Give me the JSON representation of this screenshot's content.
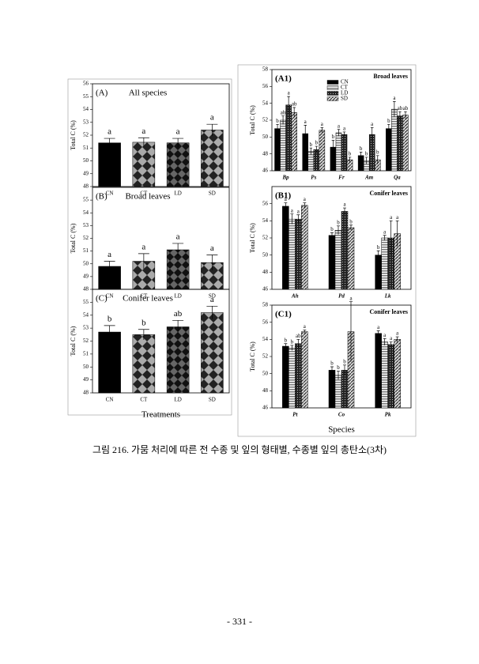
{
  "chart_data": [
    {
      "type": "bar",
      "panel": "(A)",
      "title": "All species",
      "ylabel": "Total C (%)",
      "categories": [
        "CN",
        "CT",
        "LD",
        "SD"
      ],
      "values": [
        51.4,
        51.45,
        51.4,
        52.4
      ],
      "errors": [
        0.35,
        0.35,
        0.35,
        0.45
      ],
      "letters": [
        "a",
        "a",
        "a",
        "a"
      ],
      "patterns": [
        "solid",
        "diamond",
        "diamond-dark",
        "diamond"
      ],
      "ylim": [
        48,
        56
      ],
      "yticks": [
        48,
        49,
        50,
        51,
        52,
        53,
        54,
        55,
        56
      ]
    },
    {
      "type": "bar",
      "panel": "(B)",
      "title": "Broad leaves",
      "ylabel": "Total C (%)",
      "categories": [
        "CN",
        "CT",
        "LD",
        "SD"
      ],
      "values": [
        49.8,
        50.2,
        51.1,
        50.1
      ],
      "errors": [
        0.4,
        0.6,
        0.5,
        0.6
      ],
      "letters": [
        "a",
        "a",
        "a",
        "a"
      ],
      "patterns": [
        "solid",
        "diamond",
        "diamond-dark",
        "diamond"
      ],
      "ylim": [
        48,
        56
      ],
      "yticks": [
        48,
        49,
        50,
        51,
        52,
        53,
        54,
        55
      ]
    },
    {
      "type": "bar",
      "panel": "(C)",
      "title": "Conifer leaves",
      "ylabel": "Total C (%)",
      "xlabel": "Treatments",
      "categories": [
        "CN",
        "CT",
        "LD",
        "SD"
      ],
      "values": [
        52.7,
        52.5,
        53.1,
        54.2
      ],
      "errors": [
        0.5,
        0.4,
        0.5,
        0.5
      ],
      "letters": [
        "b",
        "b",
        "ab",
        "a"
      ],
      "patterns": [
        "solid",
        "diamond",
        "diamond-dark",
        "diamond"
      ],
      "ylim": [
        48,
        56
      ],
      "yticks": [
        48,
        49,
        50,
        51,
        52,
        53,
        54,
        55
      ]
    },
    {
      "type": "grouped_bar",
      "panel": "(A1)",
      "title": "Broad leaves",
      "ylabel": "Total C (%)",
      "legend": true,
      "categories": [
        "Bp",
        "Ps",
        "Fr",
        "Am",
        "Qa"
      ],
      "series": [
        {
          "name": "CN",
          "pattern": "solid",
          "values": [
            51.0,
            50.4,
            48.8,
            47.8,
            51.0
          ],
          "errors": [
            0.5,
            1.0,
            0.8,
            0.4,
            0.5
          ],
          "letters": [
            "b",
            "a",
            "b",
            "b",
            "b"
          ]
        },
        {
          "name": "CT",
          "pattern": "hstripe",
          "values": [
            52.0,
            48.3,
            50.5,
            47.2,
            53.3
          ],
          "errors": [
            0.5,
            0.4,
            0.4,
            0.4,
            0.9
          ],
          "letters": [
            "ab",
            "b",
            "a",
            "b",
            "a"
          ]
        },
        {
          "name": "LD",
          "pattern": "dots",
          "values": [
            53.8,
            48.5,
            50.3,
            50.3,
            52.5
          ],
          "errors": [
            1.0,
            0.4,
            0.3,
            0.8,
            0.5
          ],
          "letters": [
            "a",
            "b",
            "a",
            "a",
            "ab"
          ]
        },
        {
          "name": "SD",
          "pattern": "diag",
          "values": [
            52.9,
            50.8,
            47.3,
            47.3,
            52.6
          ],
          "errors": [
            0.6,
            0.3,
            0.3,
            0.5,
            0.4
          ],
          "letters": [
            "ab",
            "a",
            "b",
            "b",
            "ab"
          ]
        }
      ],
      "ylim": [
        46,
        58
      ],
      "yticks": [
        46,
        48,
        50,
        52,
        54,
        56,
        58
      ]
    },
    {
      "type": "grouped_bar",
      "panel": "(B1)",
      "title": "Conifer leaves",
      "ylabel": "Total C (%)",
      "categories": [
        "Ah",
        "Pd",
        "Lk"
      ],
      "series": [
        {
          "name": "CN",
          "pattern": "solid",
          "values": [
            55.7,
            52.3,
            50.0
          ],
          "errors": [
            0.4,
            0.3,
            0.5
          ],
          "letters": [
            "a",
            "b",
            "b"
          ]
        },
        {
          "name": "CT",
          "pattern": "hstripe",
          "values": [
            54.2,
            52.9,
            52.0
          ],
          "errors": [
            0.6,
            0.5,
            0.3
          ],
          "letters": [
            "a",
            "b",
            "a"
          ]
        },
        {
          "name": "LD",
          "pattern": "dots",
          "values": [
            54.2,
            55.1,
            52.0
          ],
          "errors": [
            0.5,
            0.4,
            2.0
          ],
          "letters": [
            "a",
            "a",
            "a"
          ]
        },
        {
          "name": "SD",
          "pattern": "diag",
          "values": [
            55.8,
            53.2,
            52.5
          ],
          "errors": [
            0.3,
            0.3,
            1.5
          ],
          "letters": [
            "a",
            "b",
            "a"
          ]
        }
      ],
      "ylim": [
        46,
        58
      ],
      "yticks": [
        46,
        48,
        50,
        52,
        54,
        56
      ]
    },
    {
      "type": "grouped_bar",
      "panel": "(C1)",
      "title": "Conifer leaves",
      "ylabel": "Total C (%)",
      "xlabel": "Species",
      "categories": [
        "Pt",
        "Co",
        "Pk"
      ],
      "series": [
        {
          "name": "CN",
          "pattern": "solid",
          "values": [
            53.2,
            50.4,
            54.7
          ],
          "errors": [
            0.3,
            0.4,
            0.3
          ],
          "letters": [
            "b",
            "b",
            "a"
          ]
        },
        {
          "name": "CT",
          "pattern": "hstripe",
          "values": [
            53.0,
            49.8,
            53.7
          ],
          "errors": [
            0.3,
            0.5,
            0.4
          ],
          "letters": [
            "b",
            "b",
            "a"
          ]
        },
        {
          "name": "LD",
          "pattern": "dots",
          "values": [
            53.5,
            50.4,
            53.4
          ],
          "errors": [
            0.5,
            0.6,
            0.3
          ],
          "letters": [
            "ab",
            "b",
            "a"
          ]
        },
        {
          "name": "SD",
          "pattern": "diag",
          "values": [
            54.9,
            54.9,
            54.0
          ],
          "errors": [
            0.2,
            3.5,
            0.3
          ],
          "letters": [
            "a",
            "a",
            "a"
          ]
        }
      ],
      "ylim": [
        46,
        58
      ],
      "yticks": [
        46,
        48,
        50,
        52,
        54,
        56,
        58
      ]
    }
  ],
  "caption": "그림 216. 가뭄 처리에 따른 전 수종 및 잎의 형태별, 수종별 잎의 총탄소(3차)",
  "page_number": "- 331 -"
}
